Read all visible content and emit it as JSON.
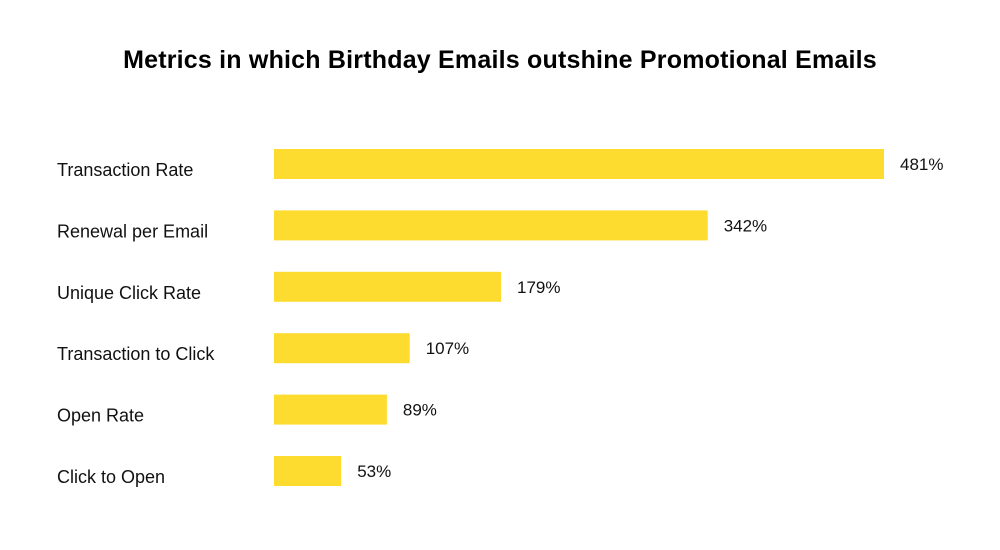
{
  "chart_data": {
    "type": "bar",
    "orientation": "horizontal",
    "title": "Metrics in which Birthday Emails outshine Promotional Emails",
    "categories": [
      "Transaction Rate",
      "Renewal per Email",
      "Unique Click Rate",
      "Transaction to Click",
      "Open Rate",
      "Click to Open"
    ],
    "values": [
      481,
      342,
      179,
      107,
      89,
      53
    ],
    "value_labels": [
      "481%",
      "342%",
      "179%",
      "107%",
      "89%",
      "53%"
    ],
    "value_unit": "%",
    "xlabel": "",
    "ylabel": "",
    "grid": false,
    "legend": "none",
    "bar_color": "#FDDC2F"
  }
}
